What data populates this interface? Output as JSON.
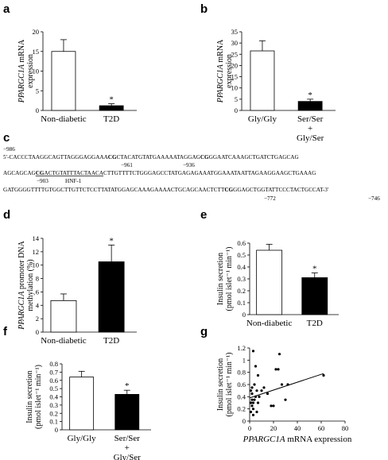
{
  "panel_labels": [
    "a",
    "b",
    "c",
    "d",
    "e",
    "f",
    "g"
  ],
  "sequence": {
    "start_label": "−986",
    "lines": [
      [
        {
          "t": "5′-CACCCTAAGGCAGTTAGGGAGGAAA"
        },
        {
          "t": "CG",
          "b": true
        },
        {
          "t": "CTACATGTATGAAAAATAGGAG"
        },
        {
          "t": "CG",
          "b": true
        },
        {
          "t": "GGAATCAAAGCTGATCTGAGCAG"
        }
      ],
      [
        {
          "t": "AGCAGCAG"
        },
        {
          "t": "CG",
          "b": true,
          "u": true
        },
        {
          "t": "ACTGTATTTACTAACA",
          "u": true
        },
        {
          "t": "CTTGTTTTCTGGGAGCCTATGAGAGAAATGGAAATAATTAGAAGGAAGCTGAAAG"
        }
      ],
      [
        {
          "t": "GATGGGGTTTTGTGGCTTGTTCTCCTTATATGGAGCAAAGAAAACTGCAGCAACTCTT"
        },
        {
          "t": "CG",
          "b": true
        },
        {
          "t": "GGAGCTGGTATTCCCTACTGCCAT-3′"
        }
      ]
    ],
    "position_labels": [
      "−961",
      "−936",
      "−903",
      "HNF-1",
      "−772",
      "−746"
    ]
  },
  "chart_data": [
    {
      "panel": "a",
      "type": "bar",
      "categories": [
        "Non-diabetic",
        "T2D"
      ],
      "values": [
        15,
        1.2
      ],
      "errors": [
        3,
        0.5
      ],
      "colors": [
        "#ffffff",
        "#000000"
      ],
      "significance": [
        "",
        "*"
      ],
      "ylabel_italic": "PPARGC1A",
      "ylabel_rest": " mRNA expression",
      "ylim": [
        0,
        20
      ],
      "yticks": [
        0,
        5,
        10,
        15,
        20
      ]
    },
    {
      "panel": "b",
      "type": "bar",
      "categories": [
        "Gly/Gly",
        "Ser/Ser\n+\nGly/Ser"
      ],
      "values": [
        26.5,
        4
      ],
      "errors": [
        4.5,
        1
      ],
      "colors": [
        "#ffffff",
        "#000000"
      ],
      "significance": [
        "",
        "*"
      ],
      "ylabel_italic": "PPARGC1A",
      "ylabel_rest": " mRNA expression",
      "ylim": [
        0,
        35
      ],
      "yticks": [
        0,
        5,
        10,
        15,
        20,
        25,
        30,
        35
      ]
    },
    {
      "panel": "d",
      "type": "bar",
      "categories": [
        "Non-diabetic",
        "T2D"
      ],
      "values": [
        4.7,
        10.5
      ],
      "errors": [
        1.0,
        2.5
      ],
      "colors": [
        "#ffffff",
        "#000000"
      ],
      "significance": [
        "",
        "*"
      ],
      "ylabel_italic": "PPARGC1A",
      "ylabel_rest": " promoter DNA methylation (%)",
      "ylim": [
        0,
        14
      ],
      "yticks": [
        0,
        2,
        4,
        6,
        8,
        10,
        12,
        14
      ]
    },
    {
      "panel": "e",
      "type": "bar",
      "categories": [
        "Non-diabetic",
        "T2D"
      ],
      "values": [
        0.54,
        0.31
      ],
      "errors": [
        0.05,
        0.04
      ],
      "colors": [
        "#ffffff",
        "#000000"
      ],
      "significance": [
        "",
        "*"
      ],
      "ylabel_line1": "Insulin secretion",
      "ylabel_line2": "(pmol islet⁻¹ min⁻¹)",
      "ylim": [
        0,
        0.6
      ],
      "yticks": [
        0,
        0.1,
        0.2,
        0.3,
        0.4,
        0.5,
        0.6
      ]
    },
    {
      "panel": "f",
      "type": "bar",
      "categories": [
        "Gly/Gly",
        "Ser/Ser\n+\nGly/Ser"
      ],
      "values": [
        0.64,
        0.43
      ],
      "errors": [
        0.07,
        0.05
      ],
      "colors": [
        "#ffffff",
        "#000000"
      ],
      "significance": [
        "",
        "*"
      ],
      "ylabel_line1": "Insulin secretion",
      "ylabel_line2": "(pmol islet⁻¹ min⁻¹)",
      "ylim": [
        0,
        0.8
      ],
      "yticks": [
        0,
        0.1,
        0.2,
        0.3,
        0.4,
        0.5,
        0.6,
        0.7,
        0.8
      ]
    },
    {
      "panel": "g",
      "type": "scatter",
      "x": [
        1,
        1,
        1,
        2,
        2,
        2,
        2,
        3,
        3,
        3,
        3,
        4,
        4,
        5,
        5,
        6,
        6,
        7,
        7,
        8,
        10,
        12,
        15,
        18,
        20,
        22,
        24,
        25,
        27,
        30,
        32,
        62
      ],
      "y": [
        0.15,
        0.3,
        0.5,
        0.25,
        0.35,
        0.45,
        0.55,
        0.1,
        0.2,
        0.3,
        1.15,
        0.35,
        0.6,
        0.4,
        0.9,
        0.15,
        0.5,
        0.75,
        0.3,
        0.4,
        0.5,
        0.55,
        0.45,
        0.25,
        0.25,
        0.85,
        0.85,
        1.1,
        0.6,
        0.35,
        0.6,
        0.75
      ],
      "trend": {
        "x": [
          0,
          62
        ],
        "y": [
          0.38,
          0.78
        ]
      },
      "xlabel_italic": "PPARGC1A",
      "xlabel_rest": " mRNA expression",
      "ylabel_line1": "Insulin secretion",
      "ylabel_line2": "(pmol islet⁻¹ min⁻¹)",
      "xlim": [
        0,
        80
      ],
      "ylim": [
        0,
        1.2
      ],
      "xticks": [
        0,
        20,
        40,
        60,
        80
      ],
      "yticks": [
        0,
        0.2,
        0.4,
        0.6,
        0.8,
        1.0,
        1.2
      ]
    }
  ]
}
